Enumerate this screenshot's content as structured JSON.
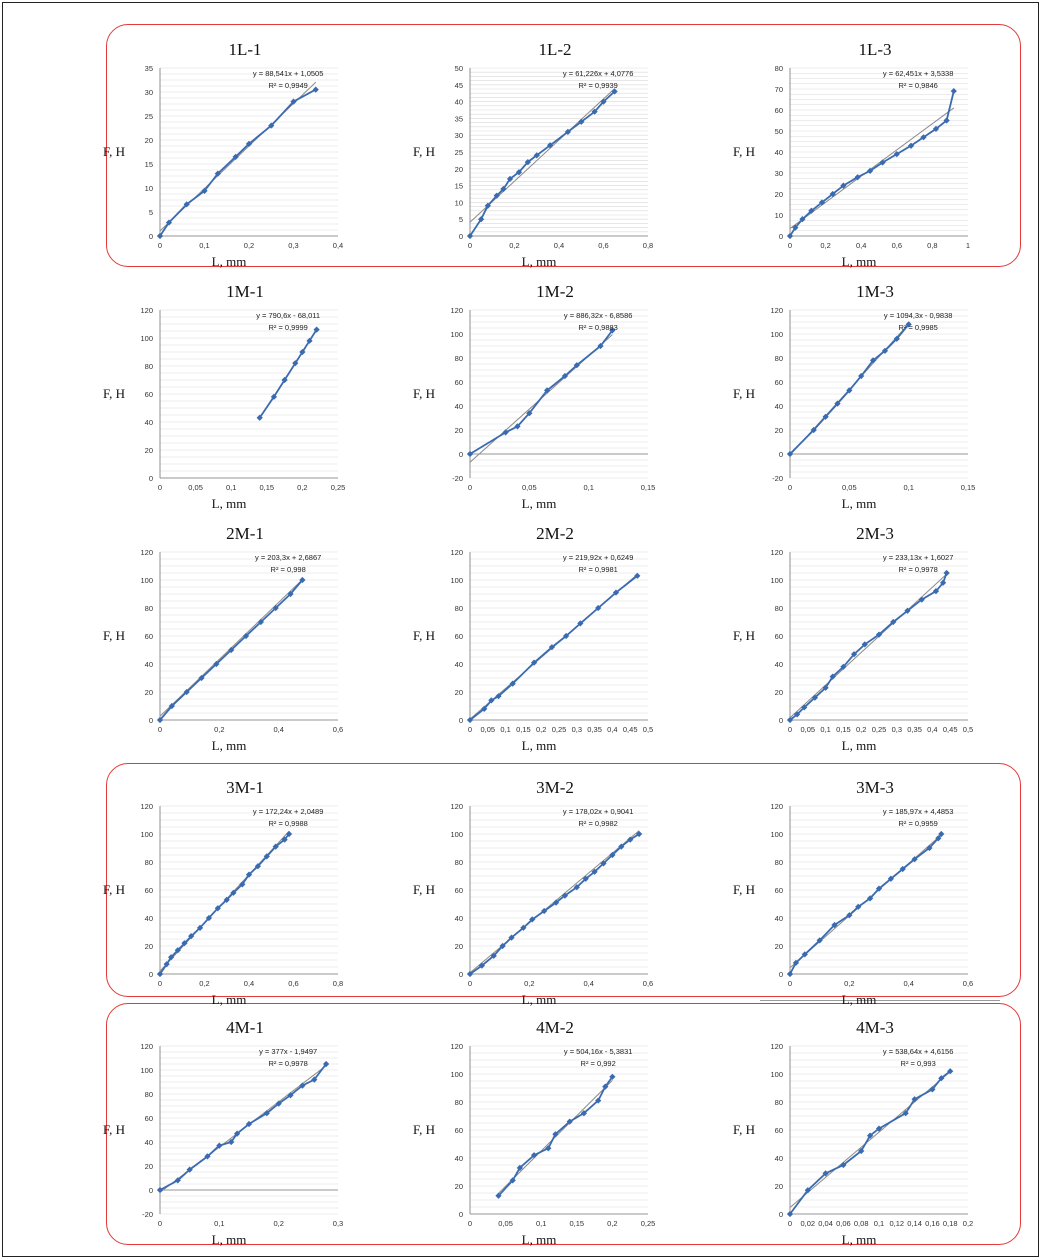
{
  "axis_labels": {
    "x": "L, mm",
    "y": "F, H"
  },
  "colors": {
    "series": "#3a6bb0",
    "trend": "#8a8a8a",
    "grid": "#d9d9d9",
    "highlight": "#e33a3a"
  },
  "chart_data": [
    {
      "type": "scatter",
      "title": "1L-1",
      "xlabel": "L, mm",
      "ylabel": "F, H",
      "xlim": [
        0,
        0.4
      ],
      "ylim": [
        0,
        35
      ],
      "xticks": [
        0,
        0.1,
        0.2,
        0.3,
        0.4
      ],
      "yticks": [
        0,
        5,
        10,
        15,
        20,
        25,
        30,
        35
      ],
      "xtick_labels": [
        "0",
        "0,1",
        "0,2",
        "0,3",
        "0,4"
      ],
      "ytick_labels": [
        "0",
        "5",
        "10",
        "15",
        "20",
        "25",
        "30",
        "35"
      ],
      "trendline": {
        "slope": 88.541,
        "intercept": 1.0505,
        "label": "y = 88,541x + 1,0505",
        "r2_label": "R² = 0,9949"
      },
      "x": [
        0,
        0.02,
        0.06,
        0.1,
        0.13,
        0.17,
        0.2,
        0.25,
        0.3,
        0.35
      ],
      "y": [
        0,
        2.8,
        6.6,
        9.4,
        13,
        16.5,
        19.2,
        23,
        28,
        30.5
      ],
      "highlighted": true
    },
    {
      "type": "scatter",
      "title": "1L-2",
      "xlabel": "L, mm",
      "ylabel": "F, H",
      "xlim": [
        0,
        0.8
      ],
      "ylim": [
        0,
        50
      ],
      "xticks": [
        0,
        0.2,
        0.4,
        0.6,
        0.8
      ],
      "yticks": [
        0,
        5,
        10,
        15,
        20,
        25,
        30,
        35,
        40,
        45,
        50
      ],
      "xtick_labels": [
        "0",
        "0,2",
        "0,4",
        "0,6",
        "0,8"
      ],
      "ytick_labels": [
        "0",
        "5",
        "10",
        "15",
        "20",
        "25",
        "30",
        "35",
        "40",
        "45",
        "50"
      ],
      "trendline": {
        "slope": 61.226,
        "intercept": 4.0776,
        "label": "y = 61,226x + 4,0776",
        "r2_label": "R² = 0,9939"
      },
      "x": [
        0,
        0.05,
        0.08,
        0.12,
        0.15,
        0.18,
        0.22,
        0.26,
        0.3,
        0.36,
        0.44,
        0.5,
        0.56,
        0.6,
        0.65
      ],
      "y": [
        0,
        5,
        9,
        12,
        14,
        17,
        19,
        22,
        24,
        27,
        31,
        34,
        37,
        40,
        43
      ],
      "highlighted": true
    },
    {
      "type": "scatter",
      "title": "1L-3",
      "xlabel": "L, mm",
      "ylabel": "F, H",
      "xlim": [
        0,
        1
      ],
      "ylim": [
        0,
        80
      ],
      "xticks": [
        0,
        0.2,
        0.4,
        0.6,
        0.8,
        1
      ],
      "yticks": [
        0,
        10,
        20,
        30,
        40,
        50,
        60,
        70,
        80
      ],
      "xtick_labels": [
        "0",
        "0,2",
        "0,4",
        "0,6",
        "0,8",
        "1"
      ],
      "ytick_labels": [
        "0",
        "10",
        "20",
        "30",
        "40",
        "50",
        "60",
        "70",
        "80"
      ],
      "trendline": {
        "slope": 62.451,
        "intercept": 3.5338,
        "label": "y = 62,451x + 3,5338",
        "r2_label": "R² = 0,9846"
      },
      "x": [
        0,
        0.03,
        0.07,
        0.12,
        0.18,
        0.24,
        0.3,
        0.38,
        0.45,
        0.52,
        0.6,
        0.68,
        0.75,
        0.82,
        0.88,
        0.92
      ],
      "y": [
        0,
        4,
        8,
        12,
        16,
        20,
        24,
        28,
        31,
        35,
        39,
        43,
        47,
        51,
        55,
        69
      ],
      "highlighted": true
    },
    {
      "type": "scatter",
      "title": "1M-1",
      "xlabel": "L, mm",
      "ylabel": "F, H",
      "xlim": [
        0,
        0.25
      ],
      "ylim": [
        0,
        120
      ],
      "xticks": [
        0,
        0.05,
        0.1,
        0.15,
        0.2,
        0.25
      ],
      "yticks": [
        0,
        20,
        40,
        60,
        80,
        100,
        120
      ],
      "xtick_labels": [
        "0",
        "0,05",
        "0,1",
        "0,15",
        "0,2",
        "0,25"
      ],
      "ytick_labels": [
        "0",
        "20",
        "40",
        "60",
        "80",
        "100",
        "120"
      ],
      "trendline": {
        "slope": 790.6,
        "intercept": -68.011,
        "label": "y = 790,6x - 68,011",
        "r2_label": "R² = 0,9999"
      },
      "x": [
        0.14,
        0.16,
        0.175,
        0.19,
        0.2,
        0.21,
        0.22
      ],
      "y": [
        43,
        58,
        70,
        82,
        90,
        98,
        106
      ],
      "highlighted": false
    },
    {
      "type": "scatter",
      "title": "1M-2",
      "xlabel": "L, mm",
      "ylabel": "F, H",
      "xlim": [
        0,
        0.15
      ],
      "ylim": [
        -20,
        120
      ],
      "xticks": [
        0,
        0.05,
        0.1,
        0.15
      ],
      "yticks": [
        -20,
        0,
        20,
        40,
        60,
        80,
        100,
        120
      ],
      "xtick_labels": [
        "0",
        "0,05",
        "0,1",
        "0,15"
      ],
      "ytick_labels": [
        "-20",
        "0",
        "20",
        "40",
        "60",
        "80",
        "100",
        "120"
      ],
      "trendline": {
        "slope": 886.32,
        "intercept": -6.8586,
        "label": "y = 886,32x - 6,8586",
        "r2_label": "R² = 0,9883"
      },
      "x": [
        0,
        0.03,
        0.04,
        0.05,
        0.065,
        0.08,
        0.09,
        0.11,
        0.12
      ],
      "y": [
        0,
        18,
        23,
        34,
        53,
        65,
        74,
        90,
        103
      ],
      "highlighted": false
    },
    {
      "type": "scatter",
      "title": "1M-3",
      "xlabel": "L, mm",
      "ylabel": "F, H",
      "xlim": [
        0,
        0.15
      ],
      "ylim": [
        -20,
        120
      ],
      "xticks": [
        0,
        0.05,
        0.1,
        0.15
      ],
      "yticks": [
        -20,
        0,
        20,
        40,
        60,
        80,
        100,
        120
      ],
      "xtick_labels": [
        "0",
        "0,05",
        "0,1",
        "0,15"
      ],
      "ytick_labels": [
        "-20",
        "0",
        "20",
        "40",
        "60",
        "80",
        "100",
        "120"
      ],
      "trendline": {
        "slope": 1094.3,
        "intercept": -0.9838,
        "label": "y = 1094,3x - 0,9838",
        "r2_label": "R² = 0,9985"
      },
      "x": [
        0,
        0.02,
        0.03,
        0.04,
        0.05,
        0.06,
        0.07,
        0.08,
        0.09,
        0.1
      ],
      "y": [
        0,
        20,
        31,
        42,
        53,
        65,
        78,
        86,
        96,
        108
      ],
      "highlighted": false
    },
    {
      "type": "scatter",
      "title": "2M-1",
      "xlabel": "L, mm",
      "ylabel": "F, H",
      "xlim": [
        0,
        0.6
      ],
      "ylim": [
        0,
        120
      ],
      "xticks": [
        0,
        0.2,
        0.4,
        0.6
      ],
      "yticks": [
        0,
        20,
        40,
        60,
        80,
        100,
        120
      ],
      "xtick_labels": [
        "0",
        "0,2",
        "0,4",
        "0,6"
      ],
      "ytick_labels": [
        "0",
        "20",
        "40",
        "60",
        "80",
        "100",
        "120"
      ],
      "trendline": {
        "slope": 203.3,
        "intercept": 2.6867,
        "label": "y = 203,3x + 2,6867",
        "r2_label": "R² = 0,998"
      },
      "x": [
        0,
        0.04,
        0.09,
        0.14,
        0.19,
        0.24,
        0.29,
        0.34,
        0.39,
        0.44,
        0.48
      ],
      "y": [
        0,
        10,
        20,
        30,
        40,
        50,
        60,
        70,
        80,
        90,
        100
      ],
      "highlighted": false
    },
    {
      "type": "scatter",
      "title": "2M-2",
      "xlabel": "L, mm",
      "ylabel": "F, H",
      "xlim": [
        0,
        0.5
      ],
      "ylim": [
        0,
        120
      ],
      "xticks": [
        0,
        0.05,
        0.1,
        0.15,
        0.2,
        0.25,
        0.3,
        0.35,
        0.4,
        0.45,
        0.5
      ],
      "yticks": [
        0,
        20,
        40,
        60,
        80,
        100,
        120
      ],
      "xtick_labels": [
        "0",
        "0,05",
        "0,1",
        "0,15",
        "0,2",
        "0,25",
        "0,3",
        "0,35",
        "0,4",
        "0,45",
        "0,5"
      ],
      "ytick_labels": [
        "0",
        "20",
        "40",
        "60",
        "80",
        "100",
        "120"
      ],
      "trendline": {
        "slope": 219.92,
        "intercept": 0.6249,
        "label": "y = 219,92x + 0,6249",
        "r2_label": "R² = 0,9981"
      },
      "x": [
        0,
        0.04,
        0.06,
        0.08,
        0.12,
        0.18,
        0.23,
        0.27,
        0.31,
        0.36,
        0.41,
        0.47
      ],
      "y": [
        0,
        8,
        14,
        17,
        26,
        41,
        52,
        60,
        69,
        80,
        91,
        103
      ],
      "highlighted": false
    },
    {
      "type": "scatter",
      "title": "2M-3",
      "xlabel": "L, mm",
      "ylabel": "F, H",
      "xlim": [
        0,
        0.5
      ],
      "ylim": [
        0,
        120
      ],
      "xticks": [
        0,
        0.05,
        0.1,
        0.15,
        0.2,
        0.25,
        0.3,
        0.35,
        0.4,
        0.45,
        0.5
      ],
      "yticks": [
        0,
        20,
        40,
        60,
        80,
        100,
        120
      ],
      "xtick_labels": [
        "0",
        "0,05",
        "0,1",
        "0,15",
        "0,2",
        "0,25",
        "0,3",
        "0,35",
        "0,4",
        "0,45",
        "0,5"
      ],
      "ytick_labels": [
        "0",
        "20",
        "40",
        "60",
        "80",
        "100",
        "120"
      ],
      "trendline": {
        "slope": 233.13,
        "intercept": 1.6027,
        "label": "y = 233,13x + 1,6027",
        "r2_label": "R² = 0,9978"
      },
      "x": [
        0,
        0.02,
        0.04,
        0.07,
        0.1,
        0.12,
        0.15,
        0.18,
        0.21,
        0.25,
        0.29,
        0.33,
        0.37,
        0.41,
        0.43,
        0.44
      ],
      "y": [
        0,
        4,
        9,
        16,
        23,
        31,
        38,
        47,
        54,
        61,
        70,
        78,
        86,
        92,
        98,
        105
      ],
      "highlighted": false
    },
    {
      "type": "scatter",
      "title": "3M-1",
      "xlabel": "L, mm",
      "ylabel": "F, H",
      "xlim": [
        0,
        0.8
      ],
      "ylim": [
        0,
        120
      ],
      "xticks": [
        0,
        0.2,
        0.4,
        0.6,
        0.8
      ],
      "yticks": [
        0,
        20,
        40,
        60,
        80,
        100,
        120
      ],
      "xtick_labels": [
        "0",
        "0,2",
        "0,4",
        "0,6",
        "0,8"
      ],
      "ytick_labels": [
        "0",
        "20",
        "40",
        "60",
        "80",
        "100",
        "120"
      ],
      "trendline": {
        "slope": 172.24,
        "intercept": 2.0489,
        "label": "y = 172,24x + 2,0489",
        "r2_label": "R² = 0,9988"
      },
      "x": [
        0,
        0.03,
        0.05,
        0.08,
        0.11,
        0.14,
        0.18,
        0.22,
        0.26,
        0.3,
        0.33,
        0.37,
        0.4,
        0.44,
        0.48,
        0.52,
        0.56,
        0.58
      ],
      "y": [
        0,
        7,
        12,
        17,
        22,
        27,
        33,
        40,
        47,
        53,
        58,
        64,
        71,
        77,
        84,
        91,
        96,
        100
      ],
      "highlighted": true
    },
    {
      "type": "scatter",
      "title": "3M-2",
      "xlabel": "L, mm",
      "ylabel": "F, H",
      "xlim": [
        0,
        0.6
      ],
      "ylim": [
        0,
        120
      ],
      "xticks": [
        0,
        0.2,
        0.4,
        0.6
      ],
      "yticks": [
        0,
        20,
        40,
        60,
        80,
        100,
        120
      ],
      "xtick_labels": [
        "0",
        "0,2",
        "0,4",
        "0,6"
      ],
      "ytick_labels": [
        "0",
        "20",
        "40",
        "60",
        "80",
        "100",
        "120"
      ],
      "trendline": {
        "slope": 178.02,
        "intercept": 0.9041,
        "label": "y = 178,02x + 0,9041",
        "r2_label": "R² = 0,9982"
      },
      "x": [
        0,
        0.04,
        0.08,
        0.11,
        0.14,
        0.18,
        0.21,
        0.25,
        0.29,
        0.32,
        0.36,
        0.39,
        0.42,
        0.45,
        0.48,
        0.51,
        0.54,
        0.57
      ],
      "y": [
        0,
        6,
        13,
        20,
        26,
        33,
        39,
        45,
        51,
        56,
        62,
        68,
        73,
        79,
        85,
        91,
        96,
        100
      ],
      "highlighted": true
    },
    {
      "type": "scatter",
      "title": "3M-3",
      "xlabel": "L, mm",
      "ylabel": "F, H",
      "xlim": [
        0,
        0.6
      ],
      "ylim": [
        0,
        120
      ],
      "xticks": [
        0,
        0.2,
        0.4,
        0.6
      ],
      "yticks": [
        0,
        20,
        40,
        60,
        80,
        100,
        120
      ],
      "xtick_labels": [
        "0",
        "0,2",
        "0,4",
        "0,6"
      ],
      "ytick_labels": [
        "0",
        "20",
        "40",
        "60",
        "80",
        "100",
        "120"
      ],
      "trendline": {
        "slope": 185.97,
        "intercept": 4.4853,
        "label": "y = 185,97x + 4,4853",
        "r2_label": "R² = 0,9959"
      },
      "x": [
        0,
        0.02,
        0.05,
        0.1,
        0.15,
        0.2,
        0.23,
        0.27,
        0.3,
        0.34,
        0.38,
        0.42,
        0.47,
        0.5,
        0.51
      ],
      "y": [
        0,
        8,
        14,
        24,
        35,
        42,
        48,
        54,
        61,
        68,
        75,
        82,
        90,
        97,
        100
      ],
      "highlighted": true
    },
    {
      "type": "scatter",
      "title": "4M-1",
      "xlabel": "L, mm",
      "ylabel": "F, H",
      "xlim": [
        0,
        0.3
      ],
      "ylim": [
        -20,
        120
      ],
      "xticks": [
        0,
        0.1,
        0.2,
        0.3
      ],
      "yticks": [
        -20,
        0,
        20,
        40,
        60,
        80,
        100,
        120
      ],
      "xtick_labels": [
        "0",
        "0,1",
        "0,2",
        "0,3"
      ],
      "ytick_labels": [
        "-20",
        "0",
        "20",
        "40",
        "60",
        "80",
        "100",
        "120"
      ],
      "trendline": {
        "slope": 377,
        "intercept": -1.9497,
        "label": "y = 377x - 1,9497",
        "r2_label": "R² = 0,9978"
      },
      "x": [
        0,
        0.03,
        0.05,
        0.08,
        0.1,
        0.12,
        0.13,
        0.15,
        0.18,
        0.2,
        0.22,
        0.24,
        0.26,
        0.28
      ],
      "y": [
        0,
        8,
        17,
        28,
        37,
        40,
        47,
        55,
        64,
        72,
        79,
        87,
        92,
        105
      ],
      "highlighted": true
    },
    {
      "type": "scatter",
      "title": "4M-2",
      "xlabel": "L, mm",
      "ylabel": "F, H",
      "xlim": [
        0,
        0.25
      ],
      "ylim": [
        0,
        120
      ],
      "xticks": [
        0,
        0.05,
        0.1,
        0.15,
        0.2,
        0.25
      ],
      "yticks": [
        0,
        20,
        40,
        60,
        80,
        100,
        120
      ],
      "xtick_labels": [
        "0",
        "0,05",
        "0,1",
        "0,15",
        "0,2",
        "0,25"
      ],
      "ytick_labels": [
        "0",
        "20",
        "40",
        "60",
        "80",
        "100",
        "120"
      ],
      "trendline": {
        "slope": 504.16,
        "intercept": -5.3831,
        "label": "y = 504,16x - 5,3831",
        "r2_label": "R² = 0,992"
      },
      "x": [
        0.04,
        0.06,
        0.07,
        0.09,
        0.11,
        0.12,
        0.14,
        0.16,
        0.18,
        0.19,
        0.2
      ],
      "y": [
        13,
        24,
        33,
        42,
        47,
        57,
        66,
        72,
        81,
        91,
        98
      ],
      "highlighted": true
    },
    {
      "type": "scatter",
      "title": "4M-3",
      "xlabel": "L, mm",
      "ylabel": "F, H",
      "xlim": [
        0,
        0.2
      ],
      "ylim": [
        0,
        120
      ],
      "xticks": [
        0,
        0.02,
        0.04,
        0.06,
        0.08,
        0.1,
        0.12,
        0.14,
        0.16,
        0.18,
        0.2
      ],
      "yticks": [
        0,
        20,
        40,
        60,
        80,
        100,
        120
      ],
      "xtick_labels": [
        "0",
        "0,02",
        "0,04",
        "0,06",
        "0,08",
        "0,1",
        "0,12",
        "0,14",
        "0,16",
        "0,18",
        "0,2"
      ],
      "ytick_labels": [
        "0",
        "20",
        "40",
        "60",
        "80",
        "100",
        "120"
      ],
      "trendline": {
        "slope": 538.64,
        "intercept": 4.6156,
        "label": "y = 538,64x + 4,6156",
        "r2_label": "R² = 0,993"
      },
      "x": [
        0,
        0.02,
        0.04,
        0.06,
        0.08,
        0.09,
        0.1,
        0.13,
        0.14,
        0.16,
        0.17,
        0.18
      ],
      "y": [
        0,
        17,
        29,
        35,
        45,
        56,
        61,
        72,
        82,
        89,
        97,
        102
      ],
      "highlighted": true
    }
  ]
}
